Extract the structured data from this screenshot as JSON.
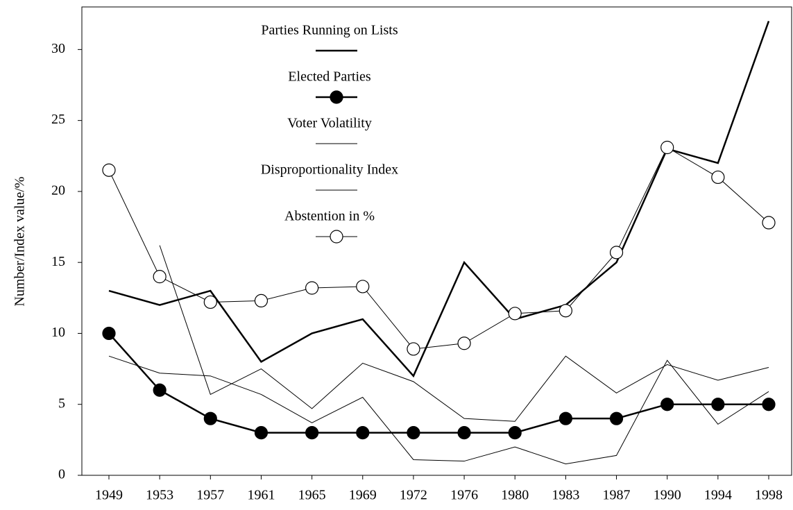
{
  "chart_data": {
    "type": "line",
    "ylabel": "Number/Index value/%",
    "categories": [
      "1949",
      "1953",
      "1957",
      "1961",
      "1965",
      "1969",
      "1972",
      "1976",
      "1980",
      "1983",
      "1987",
      "1990",
      "1994",
      "1998"
    ],
    "series": [
      {
        "name": "Parties Running on Lists",
        "color": "#000000",
        "marker": "none",
        "values": [
          13,
          12,
          13,
          8,
          10,
          11,
          7,
          15,
          11,
          12,
          15,
          23,
          22,
          32
        ]
      },
      {
        "name": "Elected Parties",
        "color": "#000000",
        "marker": "filled-circle",
        "values": [
          10,
          6,
          4,
          3,
          3,
          3,
          3,
          3,
          3,
          4,
          4,
          5,
          5,
          5
        ]
      },
      {
        "name": "Voter Volatility",
        "color": "#000000",
        "marker": "none",
        "values": [
          null,
          16.2,
          5.7,
          7.5,
          4.7,
          7.9,
          6.6,
          4.0,
          3.8,
          8.4,
          5.8,
          7.8,
          6.7,
          7.6
        ]
      },
      {
        "name": "Disproportionality Index",
        "color": "#000000",
        "marker": "none",
        "values": [
          8.4,
          7.2,
          7.0,
          5.7,
          3.7,
          5.5,
          1.1,
          1.0,
          2.0,
          0.8,
          1.4,
          8.1,
          3.6,
          5.9
        ]
      },
      {
        "name": "Abstention in %",
        "color": "#000000",
        "marker": "open-circle",
        "values": [
          21.5,
          14.0,
          12.2,
          12.3,
          13.2,
          13.3,
          8.9,
          9.3,
          11.4,
          11.6,
          15.7,
          23.1,
          21.0,
          17.8
        ]
      }
    ],
    "ylim": [
      0,
      33
    ],
    "yticks": [
      0,
      5,
      10,
      15,
      20,
      25,
      30
    ],
    "grid": false
  }
}
